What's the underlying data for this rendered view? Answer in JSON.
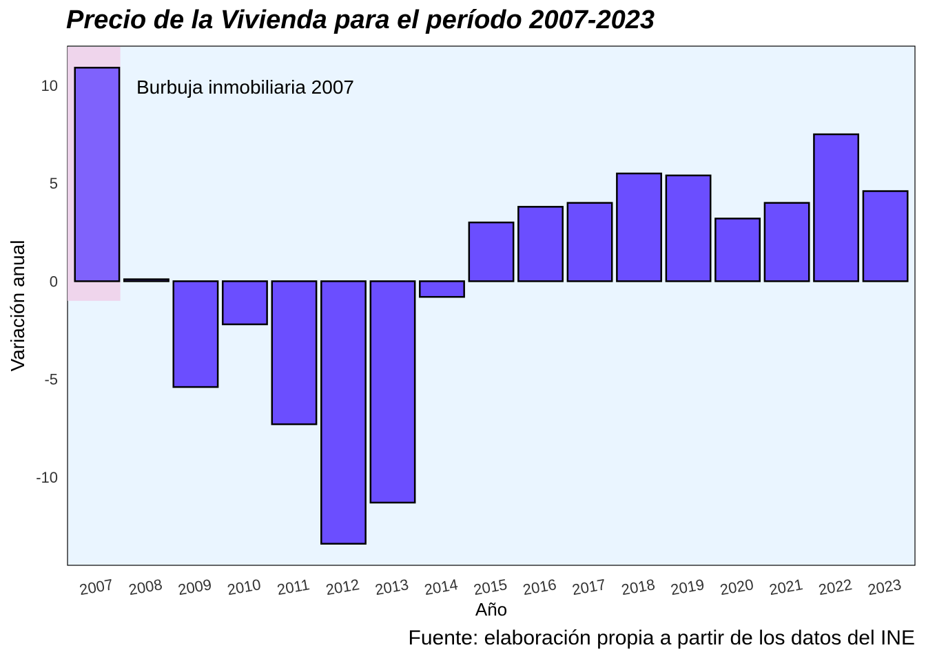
{
  "chart_data": {
    "type": "bar",
    "title": "Precio de la Vivienda para el período 2007-2023",
    "xlabel": "Año",
    "ylabel": "Variación anual",
    "caption": "Fuente: elaboración propia a partir de los datos del INE",
    "categories": [
      "2007",
      "2008",
      "2009",
      "2010",
      "2011",
      "2012",
      "2013",
      "2014",
      "2015",
      "2016",
      "2017",
      "2018",
      "2019",
      "2020",
      "2021",
      "2022",
      "2023"
    ],
    "values": [
      10.9,
      0.1,
      -5.4,
      -2.2,
      -7.3,
      -13.4,
      -11.3,
      -0.8,
      3.0,
      3.8,
      4.0,
      5.5,
      5.4,
      3.2,
      4.0,
      7.5,
      4.6
    ],
    "yticks": [
      -10,
      -5,
      0,
      5,
      10
    ],
    "ytick_labels": [
      "-10",
      "-5",
      "0",
      "5",
      "10"
    ],
    "ylim": [
      -14.5,
      12
    ],
    "grid": false,
    "annotation": {
      "text": "Burbuja inmobiliaria 2007",
      "highlight_category": "2007",
      "highlight_ymin": -1,
      "highlight_ymax": 12
    },
    "colors": {
      "bar": "#6b4eff",
      "bar_outline": "#000000",
      "panel_background": "#eaf5ff",
      "highlight": "#f0d2ea",
      "text": "#000000",
      "tick_text": "#333333"
    }
  }
}
